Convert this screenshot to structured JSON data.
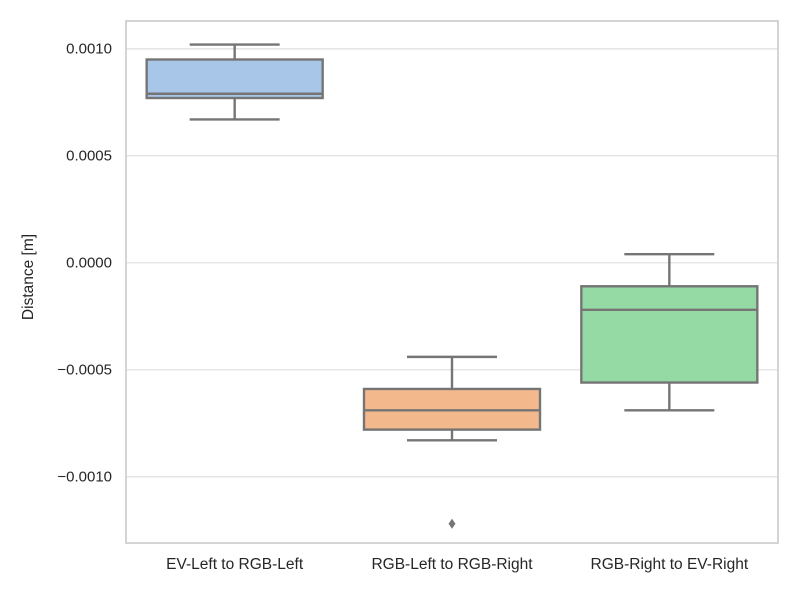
{
  "chart_data": {
    "type": "box",
    "title": "",
    "xlabel": "",
    "ylabel": "Distance [m]",
    "categories": [
      "EV-Left to RGB-Left",
      "RGB-Left to RGB-Right",
      "RGB-Right to EV-Right"
    ],
    "ylim": [
      -0.00131,
      0.00113
    ],
    "yticks": [
      {
        "value": 0.001,
        "label": "0.0010"
      },
      {
        "value": 0.0005,
        "label": "0.0005"
      },
      {
        "value": 0.0,
        "label": "0.0000"
      },
      {
        "value": -0.0005,
        "label": "−0.0005"
      },
      {
        "value": -0.001,
        "label": "−0.0010"
      }
    ],
    "grid": "horizontal",
    "legend": "none",
    "series": [
      {
        "name": "EV-Left to RGB-Left",
        "whisker_low": 0.00067,
        "q1": 0.00077,
        "median": 0.00079,
        "q3": 0.00095,
        "whisker_high": 0.00102,
        "outliers": [],
        "fill": "#a8c7e8"
      },
      {
        "name": "RGB-Left to RGB-Right",
        "whisker_low": -0.00083,
        "q1": -0.00078,
        "median": -0.00069,
        "q3": -0.00059,
        "whisker_high": -0.00044,
        "outliers": [
          -0.00122
        ],
        "fill": "#f3b98c"
      },
      {
        "name": "RGB-Right to EV-Right",
        "whisker_low": -0.00069,
        "q1": -0.00056,
        "median": -0.00022,
        "q3": -0.00011,
        "whisker_high": 4e-05,
        "outliers": [],
        "fill": "#95d9a4"
      }
    ],
    "style": {
      "edge_color": "#757575",
      "spine_color": "#cccccc",
      "grid_color": "#e2e2e2",
      "tick_color": "#262626",
      "background": "#ffffff"
    }
  }
}
